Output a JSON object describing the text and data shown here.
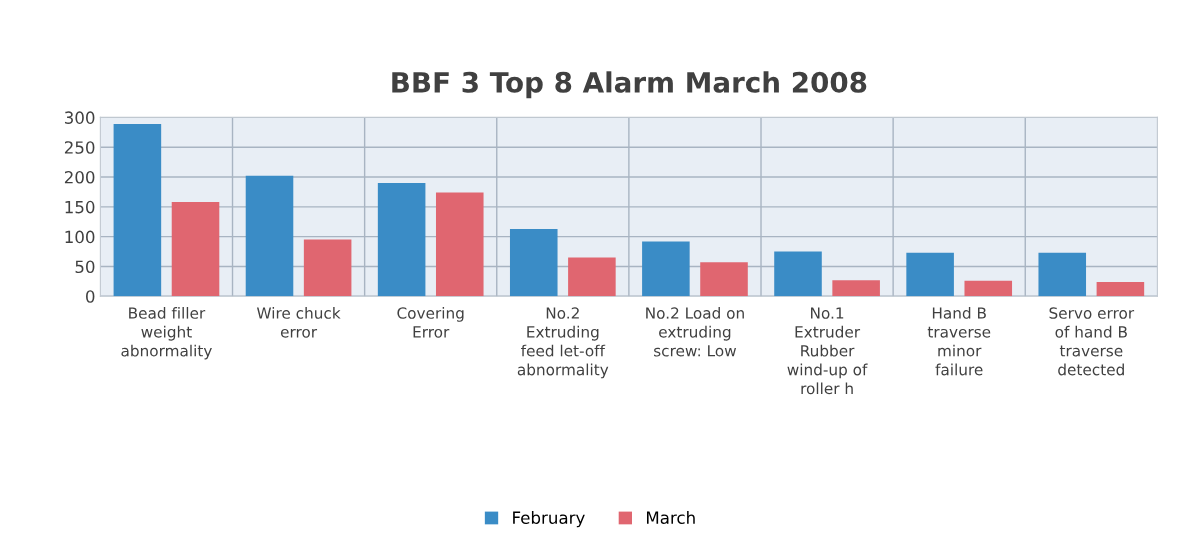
{
  "chart_data": {
    "type": "bar",
    "title": "BBF 3 Top 8 Alarm March 2008",
    "categories": [
      "Bead filler weight abnormality",
      "Wire chuck error",
      "Covering Error",
      "No.2 Extruding feed let-off abnormality",
      "No.2 Load on extruding screw: Low",
      "No.1 Extruder Rubber wind-up of roller h",
      "Hand B traverse minor failure",
      "Servo error of hand B traverse detected"
    ],
    "series": [
      {
        "name": "February",
        "color": "#3a8cc6",
        "values": [
          289,
          202,
          190,
          113,
          92,
          75,
          73,
          73
        ]
      },
      {
        "name": "March",
        "color": "#e06670",
        "values": [
          158,
          95,
          174,
          65,
          57,
          27,
          26,
          24
        ]
      }
    ],
    "ylim": [
      0,
      300
    ],
    "yticks": [
      0,
      50,
      100,
      150,
      200,
      250,
      300
    ],
    "grid": true,
    "legend": "bottom"
  }
}
